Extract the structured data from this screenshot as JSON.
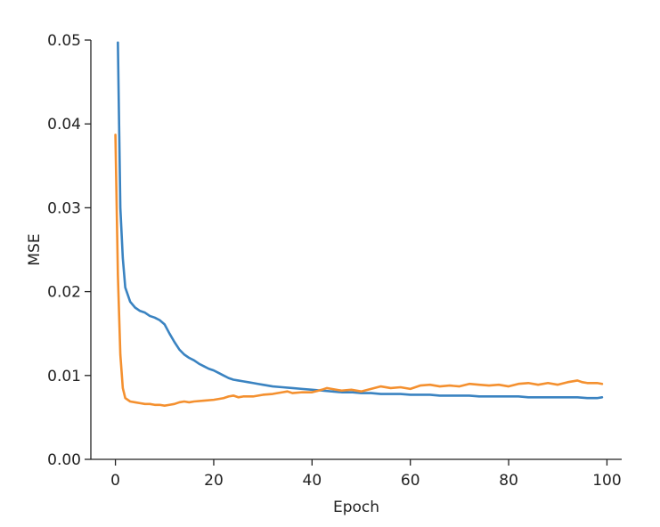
{
  "chart_data": {
    "type": "line",
    "title": "",
    "xlabel": "Epoch",
    "ylabel": "MSE",
    "xlim": [
      -5,
      103
    ],
    "ylim": [
      0,
      0.05
    ],
    "xticks": [
      0,
      20,
      40,
      60,
      80,
      100
    ],
    "yticks": [
      0.0,
      0.01,
      0.02,
      0.03,
      0.04,
      0.05
    ],
    "xtick_labels": [
      "0",
      "20",
      "40",
      "60",
      "80",
      "100"
    ],
    "ytick_labels": [
      "0.00",
      "0.01",
      "0.02",
      "0.03",
      "0.04",
      "0.05"
    ],
    "grid": false,
    "legend": "none",
    "series": [
      {
        "color": "#3a83c1",
        "x": [
          0.5,
          1,
          1.5,
          2,
          3,
          4,
          5,
          6,
          7,
          8,
          9,
          10,
          11,
          12,
          13,
          14,
          15,
          16,
          17,
          18,
          19,
          20,
          21,
          22,
          23,
          24,
          25,
          26,
          27,
          28,
          29,
          30,
          32,
          34,
          36,
          38,
          40,
          42,
          44,
          46,
          48,
          50,
          52,
          54,
          56,
          58,
          60,
          62,
          64,
          66,
          68,
          70,
          72,
          74,
          76,
          78,
          80,
          82,
          84,
          86,
          88,
          90,
          92,
          94,
          96,
          98,
          99
        ],
        "y": [
          0.0497,
          0.03,
          0.024,
          0.0205,
          0.0188,
          0.0181,
          0.0177,
          0.0175,
          0.0171,
          0.0169,
          0.0166,
          0.0161,
          0.015,
          0.014,
          0.0131,
          0.0125,
          0.0121,
          0.0118,
          0.0114,
          0.0111,
          0.0108,
          0.0106,
          0.0103,
          0.01,
          0.0097,
          0.0095,
          0.0094,
          0.0093,
          0.0092,
          0.0091,
          0.009,
          0.0089,
          0.0087,
          0.0086,
          0.0085,
          0.0084,
          0.0083,
          0.0082,
          0.0081,
          0.008,
          0.008,
          0.0079,
          0.0079,
          0.0078,
          0.0078,
          0.0078,
          0.0077,
          0.0077,
          0.0077,
          0.0076,
          0.0076,
          0.0076,
          0.0076,
          0.0075,
          0.0075,
          0.0075,
          0.0075,
          0.0075,
          0.0074,
          0.0074,
          0.0074,
          0.0074,
          0.0074,
          0.0074,
          0.0073,
          0.0073,
          0.0074
        ]
      },
      {
        "color": "#f4902f",
        "x": [
          0,
          0.5,
          1,
          1.5,
          2,
          3,
          4,
          5,
          6,
          7,
          8,
          9,
          10,
          11,
          12,
          13,
          14,
          15,
          16,
          18,
          20,
          22,
          23,
          24,
          25,
          26,
          28,
          30,
          32,
          34,
          35,
          36,
          38,
          40,
          42,
          43,
          44,
          46,
          48,
          50,
          52,
          54,
          56,
          58,
          60,
          62,
          64,
          66,
          68,
          70,
          72,
          74,
          76,
          78,
          80,
          82,
          84,
          86,
          88,
          90,
          92,
          94,
          95,
          96,
          98,
          99
        ],
        "y": [
          0.0387,
          0.022,
          0.0125,
          0.0085,
          0.0073,
          0.0069,
          0.0068,
          0.0067,
          0.0066,
          0.0066,
          0.0065,
          0.0065,
          0.0064,
          0.0065,
          0.0066,
          0.0068,
          0.0069,
          0.0068,
          0.0069,
          0.007,
          0.0071,
          0.0073,
          0.0075,
          0.0076,
          0.0074,
          0.0075,
          0.0075,
          0.0077,
          0.0078,
          0.008,
          0.0081,
          0.0079,
          0.008,
          0.008,
          0.0083,
          0.0085,
          0.0084,
          0.0082,
          0.0083,
          0.0081,
          0.0084,
          0.0087,
          0.0085,
          0.0086,
          0.0084,
          0.0088,
          0.0089,
          0.0087,
          0.0088,
          0.0087,
          0.009,
          0.0089,
          0.0088,
          0.0089,
          0.0087,
          0.009,
          0.0091,
          0.0089,
          0.0091,
          0.0089,
          0.0092,
          0.0094,
          0.0092,
          0.0091,
          0.0091,
          0.009
        ]
      }
    ]
  }
}
